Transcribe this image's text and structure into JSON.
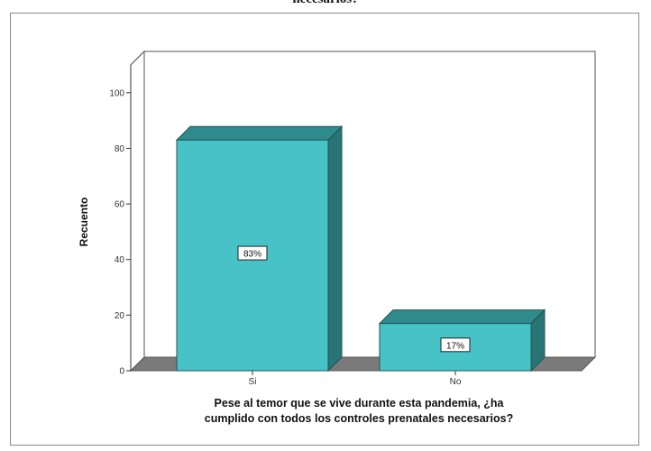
{
  "top_text": "necesarios?",
  "chart_data": {
    "type": "bar",
    "categories": [
      "Si",
      "No"
    ],
    "values": [
      83,
      17
    ],
    "data_labels": [
      "83%",
      "17%"
    ],
    "ylabel": "Recuento",
    "xlabel_lines": [
      "Pese al temor que se vive durante esta pandemia, ¿ha",
      "cumplido con todos los controles prenatales necesarios?"
    ],
    "yticks": [
      "0",
      "20",
      "40",
      "60",
      "80",
      "100"
    ],
    "ylim": [
      0,
      110
    ],
    "style": "3d",
    "colors": {
      "bar_front": "#47c2c6",
      "bar_top": "#2f8a8c",
      "bar_side": "#2a7476",
      "floor": "#7a7a7a",
      "axis": "#333333"
    }
  }
}
